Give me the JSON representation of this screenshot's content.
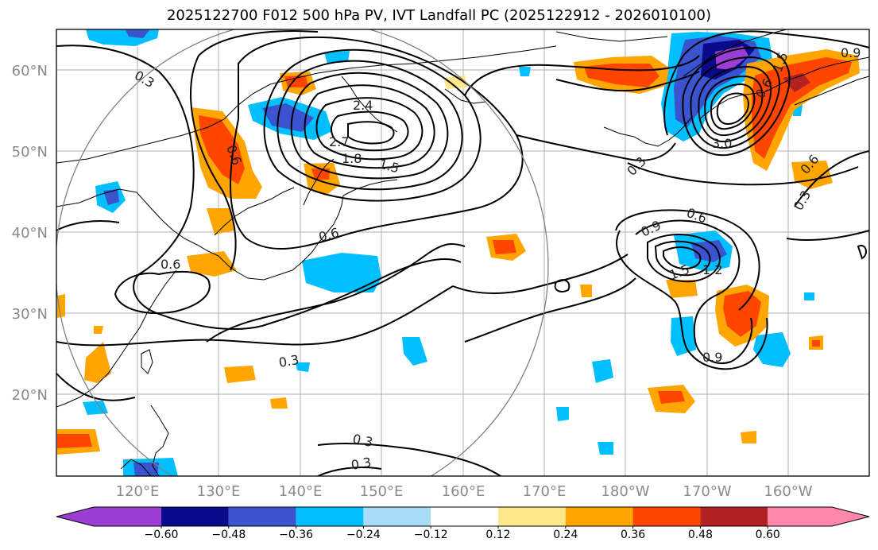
{
  "title": "2025122700 F012 500 hPa PV, IVT Landfall PC (2025122912 - 2026010100)",
  "map": {
    "lat_labels": [
      "60°N",
      "50°N",
      "40°N",
      "30°N",
      "20°N"
    ],
    "lon_labels": [
      "120°E",
      "130°E",
      "140°E",
      "150°E",
      "160°E",
      "170°E",
      "180°W",
      "170°W",
      "160°W"
    ],
    "contour_labels": [
      "0.3",
      "0.6",
      "2.4",
      "2.7",
      "1.8",
      "1.5",
      "0.6",
      "0.6",
      "0.3",
      "0.3",
      "0.3",
      "0.9",
      "3.0",
      "0.3",
      "0.6",
      "0.3",
      "1.5",
      "0.6",
      "0.9",
      "1.5",
      "1.2",
      "0.9",
      "0.6"
    ],
    "colors": {
      "purple": "#9b3fd4",
      "navy": "#0a0a8c",
      "royal_blue": "#3a54d0",
      "sky_blue": "#00bfff",
      "light_blue": "#a8dcf6",
      "light_yellow": "#ffe88a",
      "orange": "#ffa500",
      "orange_red": "#ff4500",
      "brown_red": "#b22222",
      "pink": "#ff88aa"
    }
  },
  "colorbar": {
    "ticks": [
      "−0.60",
      "−0.48",
      "−0.36",
      "−0.24",
      "−0.12",
      "0.12",
      "0.24",
      "0.36",
      "0.48",
      "0.60"
    ],
    "colors": [
      "#9b3fd4",
      "#0a0a8c",
      "#3a54d0",
      "#00bfff",
      "#a8dcf6",
      "#ffffff",
      "#ffe88a",
      "#ffa500",
      "#ff4500",
      "#b22222",
      "#ff88aa"
    ]
  }
}
